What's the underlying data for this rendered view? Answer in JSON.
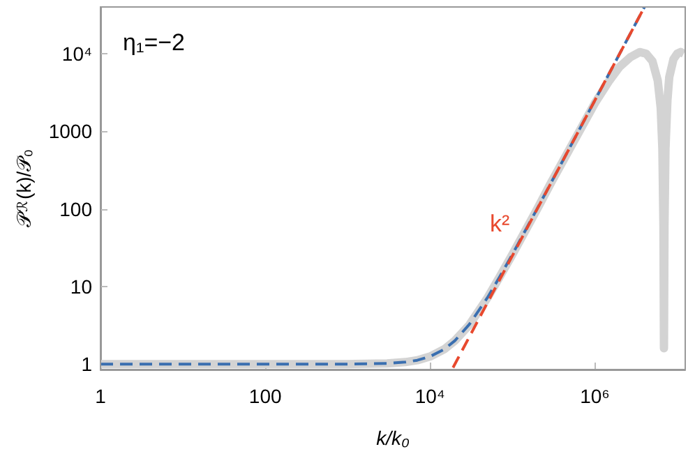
{
  "chart_data": {
    "type": "line",
    "xlabel": "k/k₀",
    "ylabel": "𝒫$_{ℛ}$(k)/𝒫₀",
    "log": "xy",
    "marker": "none",
    "xlim": [
      1,
      12500000
    ],
    "ylim": [
      0.85,
      40000
    ],
    "xticks": [
      1,
      100,
      {
        "value": 10000,
        "label": "10⁴"
      },
      {
        "value": 1000000,
        "label": "10⁶"
      }
    ],
    "yticks": [
      1,
      10,
      100,
      1000,
      {
        "value": 10000,
        "label": "10⁴"
      }
    ],
    "annotations": [
      "η₁=−2",
      "k²"
    ],
    "series": [
      {
        "color": "#d3d3d3",
        "line_style": "solid",
        "x": [
          1,
          10,
          100,
          1000,
          3000,
          5000,
          7000,
          10000,
          15000,
          20000,
          30000,
          50000,
          70000,
          100000,
          200000,
          300000,
          1000000,
          1500000,
          2000000,
          2700000,
          3500000,
          4200000,
          5000000,
          5800000,
          6300000,
          6600000,
          6800000,
          6900000,
          7000000,
          7200000,
          7600000,
          8000000,
          9000000,
          10000000,
          11000000,
          12000000
        ],
        "values": [
          1,
          1,
          1,
          1,
          1.02,
          1.06,
          1.12,
          1.25,
          1.56,
          2,
          3.2,
          7.2,
          13.3,
          26,
          100,
          226,
          2300,
          4500,
          6800,
          9000,
          10500,
          10000,
          8000,
          4500,
          2000,
          600,
          60,
          1.6,
          60,
          600,
          2500,
          5000,
          8500,
          10000,
          10500,
          10000
        ]
      },
      {
        "color": "#3a6fb0",
        "line_style": "dashed",
        "x": [
          1,
          10,
          100,
          1000,
          3000,
          5000,
          7000,
          10000,
          15000,
          20000,
          30000,
          50000,
          70000,
          100000,
          200000,
          300000,
          1000000,
          2000000,
          4000000
        ],
        "values": [
          1,
          1,
          1,
          1,
          1.02,
          1.06,
          1.12,
          1.25,
          1.56,
          2,
          3.25,
          7.25,
          13.3,
          26,
          101,
          226,
          2500,
          10000,
          40000
        ]
      },
      {
        "color": "#e8492e",
        "line_style": "dashed",
        "x": [
          19000,
          100000,
          1000000,
          4000000
        ],
        "values": [
          0.9,
          25,
          2500,
          40000
        ]
      }
    ]
  }
}
